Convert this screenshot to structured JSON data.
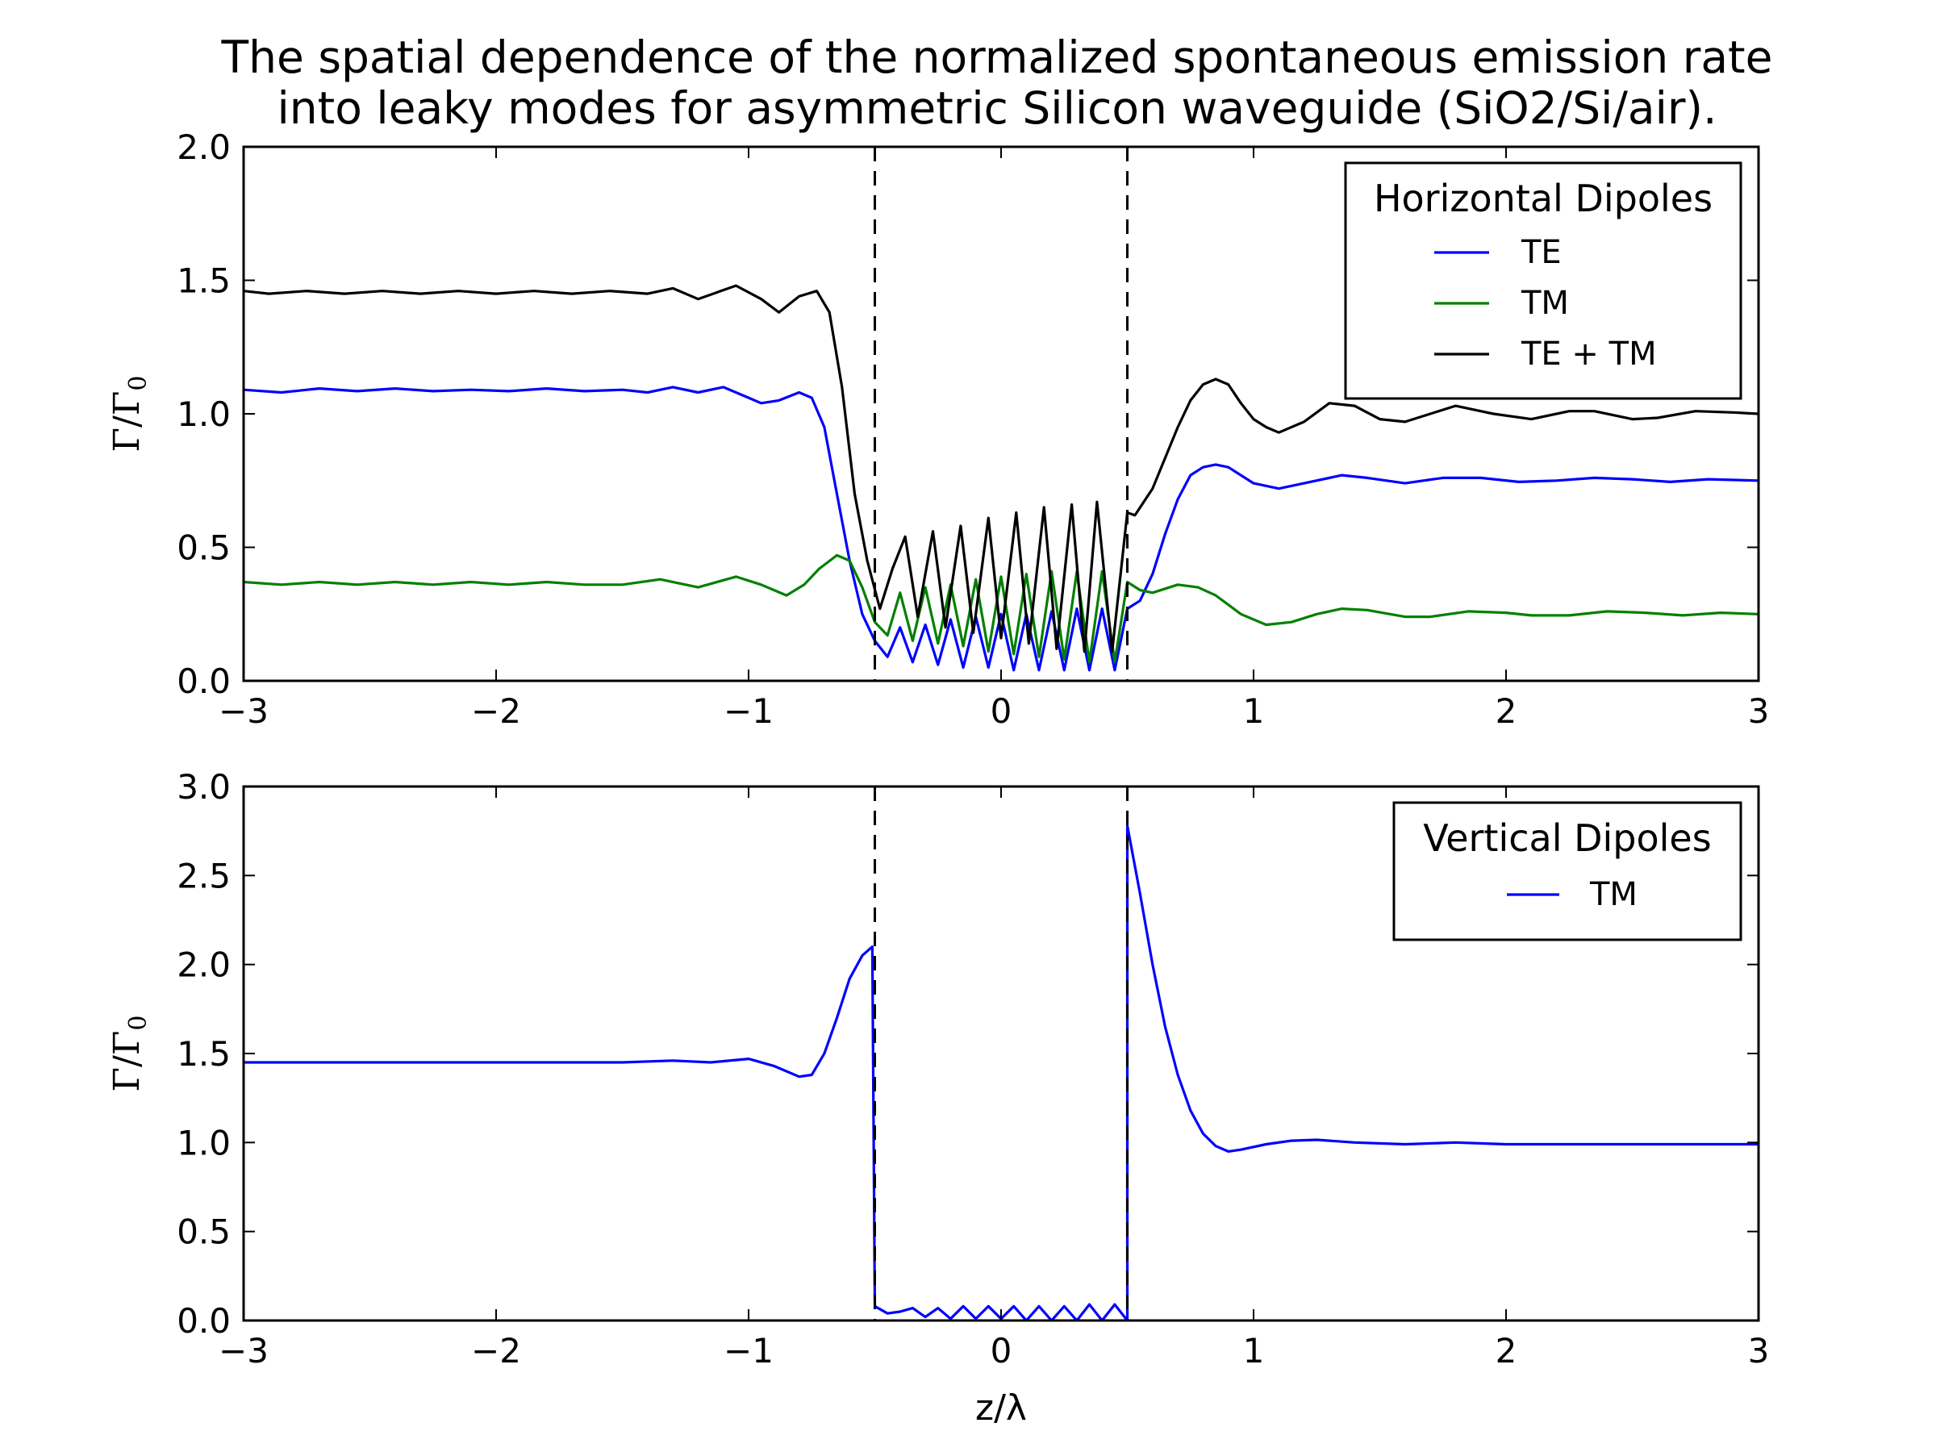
{
  "chart_data": [
    {
      "type": "line",
      "title_lines": [
        "The spatial dependence of the normalized spontaneous emission rate",
        "into leaky modes for asymmetric Silicon waveguide (SiO2/Si/air)."
      ],
      "ylabel": "Γ/Γ",
      "ylabel_sub": "0",
      "xlabel": "",
      "xlim": [
        -3,
        3
      ],
      "ylim": [
        0,
        2
      ],
      "xticks": [
        -3,
        -2,
        -1,
        0,
        1,
        2,
        3
      ],
      "xtick_labels": [
        "−3",
        "−2",
        "−1",
        "0",
        "1",
        "2",
        "3"
      ],
      "yticks": [
        0,
        0.5,
        1,
        1.5,
        2
      ],
      "ytick_labels": [
        "0.0",
        "0.5",
        "1.0",
        "1.5",
        "2.0"
      ],
      "vlines": [
        -0.5,
        0.5
      ],
      "legend": {
        "title": "Horizontal Dipoles",
        "placement": "top-right"
      },
      "series": [
        {
          "name": "TE",
          "color": "#0000ff",
          "points": [
            [
              -3,
              1.09
            ],
            [
              -2.85,
              1.08
            ],
            [
              -2.7,
              1.095
            ],
            [
              -2.55,
              1.085
            ],
            [
              -2.4,
              1.095
            ],
            [
              -2.25,
              1.085
            ],
            [
              -2.1,
              1.09
            ],
            [
              -1.95,
              1.085
            ],
            [
              -1.8,
              1.095
            ],
            [
              -1.65,
              1.085
            ],
            [
              -1.5,
              1.09
            ],
            [
              -1.4,
              1.08
            ],
            [
              -1.3,
              1.1
            ],
            [
              -1.2,
              1.08
            ],
            [
              -1.1,
              1.1
            ],
            [
              -1.0,
              1.06
            ],
            [
              -0.95,
              1.04
            ],
            [
              -0.88,
              1.05
            ],
            [
              -0.8,
              1.08
            ],
            [
              -0.75,
              1.06
            ],
            [
              -0.7,
              0.95
            ],
            [
              -0.65,
              0.7
            ],
            [
              -0.6,
              0.45
            ],
            [
              -0.55,
              0.25
            ],
            [
              -0.5,
              0.15
            ],
            [
              -0.45,
              0.09
            ],
            [
              -0.4,
              0.2
            ],
            [
              -0.35,
              0.07
            ],
            [
              -0.3,
              0.21
            ],
            [
              -0.25,
              0.06
            ],
            [
              -0.2,
              0.23
            ],
            [
              -0.15,
              0.05
            ],
            [
              -0.1,
              0.24
            ],
            [
              -0.05,
              0.05
            ],
            [
              0,
              0.25
            ],
            [
              0.05,
              0.04
            ],
            [
              0.1,
              0.25
            ],
            [
              0.15,
              0.04
            ],
            [
              0.2,
              0.26
            ],
            [
              0.25,
              0.04
            ],
            [
              0.3,
              0.27
            ],
            [
              0.35,
              0.04
            ],
            [
              0.4,
              0.27
            ],
            [
              0.45,
              0.04
            ],
            [
              0.5,
              0.27
            ],
            [
              0.55,
              0.3
            ],
            [
              0.6,
              0.4
            ],
            [
              0.65,
              0.55
            ],
            [
              0.7,
              0.68
            ],
            [
              0.75,
              0.77
            ],
            [
              0.8,
              0.8
            ],
            [
              0.85,
              0.81
            ],
            [
              0.9,
              0.8
            ],
            [
              0.95,
              0.77
            ],
            [
              1.0,
              0.74
            ],
            [
              1.1,
              0.72
            ],
            [
              1.2,
              0.74
            ],
            [
              1.35,
              0.77
            ],
            [
              1.45,
              0.76
            ],
            [
              1.6,
              0.74
            ],
            [
              1.75,
              0.76
            ],
            [
              1.9,
              0.76
            ],
            [
              2.05,
              0.745
            ],
            [
              2.2,
              0.75
            ],
            [
              2.35,
              0.76
            ],
            [
              2.5,
              0.755
            ],
            [
              2.65,
              0.745
            ],
            [
              2.8,
              0.755
            ],
            [
              3.0,
              0.75
            ]
          ]
        },
        {
          "name": "TM",
          "color": "#008000",
          "points": [
            [
              -3,
              0.37
            ],
            [
              -2.85,
              0.36
            ],
            [
              -2.7,
              0.37
            ],
            [
              -2.55,
              0.36
            ],
            [
              -2.4,
              0.37
            ],
            [
              -2.25,
              0.36
            ],
            [
              -2.1,
              0.37
            ],
            [
              -1.95,
              0.36
            ],
            [
              -1.8,
              0.37
            ],
            [
              -1.65,
              0.36
            ],
            [
              -1.5,
              0.36
            ],
            [
              -1.35,
              0.38
            ],
            [
              -1.2,
              0.35
            ],
            [
              -1.05,
              0.39
            ],
            [
              -0.95,
              0.36
            ],
            [
              -0.85,
              0.32
            ],
            [
              -0.78,
              0.36
            ],
            [
              -0.72,
              0.42
            ],
            [
              -0.65,
              0.47
            ],
            [
              -0.6,
              0.45
            ],
            [
              -0.55,
              0.35
            ],
            [
              -0.5,
              0.22
            ],
            [
              -0.45,
              0.17
            ],
            [
              -0.4,
              0.33
            ],
            [
              -0.35,
              0.15
            ],
            [
              -0.3,
              0.35
            ],
            [
              -0.25,
              0.14
            ],
            [
              -0.2,
              0.36
            ],
            [
              -0.15,
              0.13
            ],
            [
              -0.1,
              0.38
            ],
            [
              -0.05,
              0.11
            ],
            [
              0,
              0.39
            ],
            [
              0.05,
              0.1
            ],
            [
              0.1,
              0.4
            ],
            [
              0.15,
              0.09
            ],
            [
              0.2,
              0.41
            ],
            [
              0.25,
              0.08
            ],
            [
              0.3,
              0.41
            ],
            [
              0.35,
              0.07
            ],
            [
              0.4,
              0.41
            ],
            [
              0.45,
              0.07
            ],
            [
              0.5,
              0.37
            ],
            [
              0.55,
              0.34
            ],
            [
              0.6,
              0.33
            ],
            [
              0.7,
              0.36
            ],
            [
              0.78,
              0.35
            ],
            [
              0.85,
              0.32
            ],
            [
              0.95,
              0.25
            ],
            [
              1.05,
              0.21
            ],
            [
              1.15,
              0.22
            ],
            [
              1.25,
              0.25
            ],
            [
              1.35,
              0.27
            ],
            [
              1.45,
              0.265
            ],
            [
              1.6,
              0.24
            ],
            [
              1.7,
              0.24
            ],
            [
              1.85,
              0.26
            ],
            [
              2.0,
              0.255
            ],
            [
              2.1,
              0.245
            ],
            [
              2.25,
              0.245
            ],
            [
              2.4,
              0.26
            ],
            [
              2.55,
              0.255
            ],
            [
              2.7,
              0.245
            ],
            [
              2.85,
              0.255
            ],
            [
              3.0,
              0.25
            ]
          ]
        },
        {
          "name": "TE + TM",
          "color": "#000000",
          "points": [
            [
              -3,
              1.46
            ],
            [
              -2.9,
              1.45
            ],
            [
              -2.75,
              1.46
            ],
            [
              -2.6,
              1.45
            ],
            [
              -2.45,
              1.46
            ],
            [
              -2.3,
              1.45
            ],
            [
              -2.15,
              1.46
            ],
            [
              -2.0,
              1.45
            ],
            [
              -1.85,
              1.46
            ],
            [
              -1.7,
              1.45
            ],
            [
              -1.55,
              1.46
            ],
            [
              -1.4,
              1.45
            ],
            [
              -1.3,
              1.47
            ],
            [
              -1.2,
              1.43
            ],
            [
              -1.05,
              1.48
            ],
            [
              -0.95,
              1.43
            ],
            [
              -0.88,
              1.38
            ],
            [
              -0.8,
              1.44
            ],
            [
              -0.73,
              1.46
            ],
            [
              -0.68,
              1.38
            ],
            [
              -0.63,
              1.1
            ],
            [
              -0.58,
              0.7
            ],
            [
              -0.53,
              0.45
            ],
            [
              -0.48,
              0.27
            ],
            [
              -0.43,
              0.42
            ],
            [
              -0.38,
              0.54
            ],
            [
              -0.33,
              0.24
            ],
            [
              -0.27,
              0.56
            ],
            [
              -0.22,
              0.2
            ],
            [
              -0.16,
              0.58
            ],
            [
              -0.11,
              0.18
            ],
            [
              -0.05,
              0.61
            ],
            [
              0.0,
              0.16
            ],
            [
              0.06,
              0.63
            ],
            [
              0.11,
              0.14
            ],
            [
              0.17,
              0.65
            ],
            [
              0.22,
              0.12
            ],
            [
              0.28,
              0.66
            ],
            [
              0.33,
              0.11
            ],
            [
              0.38,
              0.67
            ],
            [
              0.44,
              0.11
            ],
            [
              0.5,
              0.63
            ],
            [
              0.53,
              0.62
            ],
            [
              0.6,
              0.72
            ],
            [
              0.7,
              0.95
            ],
            [
              0.75,
              1.05
            ],
            [
              0.8,
              1.11
            ],
            [
              0.85,
              1.13
            ],
            [
              0.9,
              1.11
            ],
            [
              0.95,
              1.04
            ],
            [
              1.0,
              0.98
            ],
            [
              1.05,
              0.95
            ],
            [
              1.1,
              0.93
            ],
            [
              1.2,
              0.97
            ],
            [
              1.3,
              1.04
            ],
            [
              1.4,
              1.03
            ],
            [
              1.5,
              0.98
            ],
            [
              1.6,
              0.97
            ],
            [
              1.7,
              1.0
            ],
            [
              1.8,
              1.03
            ],
            [
              1.95,
              1.0
            ],
            [
              2.1,
              0.98
            ],
            [
              2.25,
              1.01
            ],
            [
              2.35,
              1.01
            ],
            [
              2.5,
              0.98
            ],
            [
              2.6,
              0.985
            ],
            [
              2.75,
              1.01
            ],
            [
              2.9,
              1.005
            ],
            [
              3.0,
              1.0
            ]
          ]
        }
      ]
    },
    {
      "type": "line",
      "ylabel": "Γ/Γ",
      "ylabel_sub": "0",
      "xlabel": "z/λ",
      "xlim": [
        -3,
        3
      ],
      "ylim": [
        0,
        3
      ],
      "xticks": [
        -3,
        -2,
        -1,
        0,
        1,
        2,
        3
      ],
      "xtick_labels": [
        "−3",
        "−2",
        "−1",
        "0",
        "1",
        "2",
        "3"
      ],
      "yticks": [
        0,
        0.5,
        1,
        1.5,
        2,
        2.5,
        3
      ],
      "ytick_labels": [
        "0.0",
        "0.5",
        "1.0",
        "1.5",
        "2.0",
        "2.5",
        "3.0"
      ],
      "vlines": [
        -0.5,
        0.5
      ],
      "legend": {
        "title": "Vertical Dipoles",
        "placement": "top-right"
      },
      "series": [
        {
          "name": "TM",
          "color": "#0000ff",
          "points": [
            [
              -3,
              1.45
            ],
            [
              -2.5,
              1.45
            ],
            [
              -2.0,
              1.45
            ],
            [
              -1.5,
              1.45
            ],
            [
              -1.3,
              1.46
            ],
            [
              -1.15,
              1.45
            ],
            [
              -1.0,
              1.47
            ],
            [
              -0.9,
              1.43
            ],
            [
              -0.8,
              1.37
            ],
            [
              -0.75,
              1.38
            ],
            [
              -0.7,
              1.5
            ],
            [
              -0.65,
              1.7
            ],
            [
              -0.6,
              1.92
            ],
            [
              -0.55,
              2.05
            ],
            [
              -0.51,
              2.1
            ],
            [
              -0.5,
              0.08
            ],
            [
              -0.45,
              0.04
            ],
            [
              -0.4,
              0.05
            ],
            [
              -0.35,
              0.07
            ],
            [
              -0.3,
              0.02
            ],
            [
              -0.25,
              0.07
            ],
            [
              -0.2,
              0.01
            ],
            [
              -0.15,
              0.08
            ],
            [
              -0.1,
              0.01
            ],
            [
              -0.05,
              0.08
            ],
            [
              0.0,
              0.01
            ],
            [
              0.05,
              0.08
            ],
            [
              0.1,
              0.0
            ],
            [
              0.15,
              0.08
            ],
            [
              0.2,
              0.0
            ],
            [
              0.25,
              0.08
            ],
            [
              0.3,
              0.0
            ],
            [
              0.35,
              0.09
            ],
            [
              0.4,
              0.0
            ],
            [
              0.45,
              0.09
            ],
            [
              0.5,
              0.0
            ],
            [
              0.5,
              2.78
            ],
            [
              0.55,
              2.4
            ],
            [
              0.6,
              2.0
            ],
            [
              0.65,
              1.65
            ],
            [
              0.7,
              1.38
            ],
            [
              0.75,
              1.18
            ],
            [
              0.8,
              1.05
            ],
            [
              0.85,
              0.98
            ],
            [
              0.9,
              0.95
            ],
            [
              0.95,
              0.96
            ],
            [
              1.05,
              0.99
            ],
            [
              1.15,
              1.01
            ],
            [
              1.25,
              1.015
            ],
            [
              1.4,
              1.0
            ],
            [
              1.6,
              0.99
            ],
            [
              1.8,
              1.0
            ],
            [
              2.0,
              0.99
            ],
            [
              2.2,
              0.99
            ],
            [
              2.5,
              0.99
            ],
            [
              2.8,
              0.99
            ],
            [
              3.0,
              0.99
            ]
          ]
        }
      ]
    }
  ]
}
